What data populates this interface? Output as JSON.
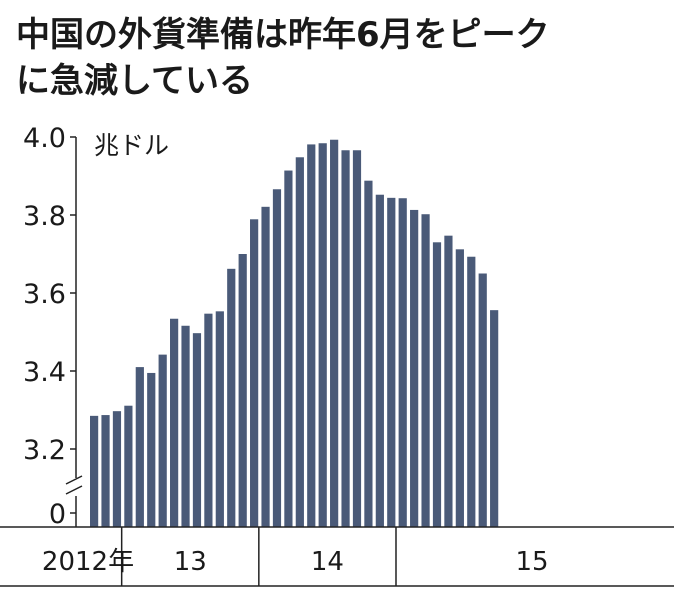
{
  "chart_data": {
    "type": "bar",
    "title_line1": "中国の外貨準備は昨年6月をピーク",
    "title_line2": "に急減している",
    "unit_label": "兆ドル",
    "y_ticks": [
      "4.0",
      "3.8",
      "3.6",
      "3.4",
      "3.2",
      "0"
    ],
    "y_range_shown": [
      3.2,
      4.0
    ],
    "axis_break": true,
    "bar_color": "#4a5a78",
    "year_labels": [
      "2012年",
      "13",
      "14",
      "15"
    ],
    "year_start_index": [
      0,
      3,
      15,
      27
    ],
    "values": [
      3.285,
      3.287,
      3.297,
      3.311,
      3.41,
      3.395,
      3.442,
      3.534,
      3.516,
      3.497,
      3.547,
      3.553,
      3.662,
      3.7,
      3.789,
      3.821,
      3.866,
      3.914,
      3.948,
      3.981,
      3.984,
      3.993,
      3.966,
      3.966,
      3.888,
      3.852,
      3.844,
      3.843,
      3.813,
      3.802,
      3.73,
      3.747,
      3.712,
      3.693,
      3.65,
      3.556
    ]
  }
}
